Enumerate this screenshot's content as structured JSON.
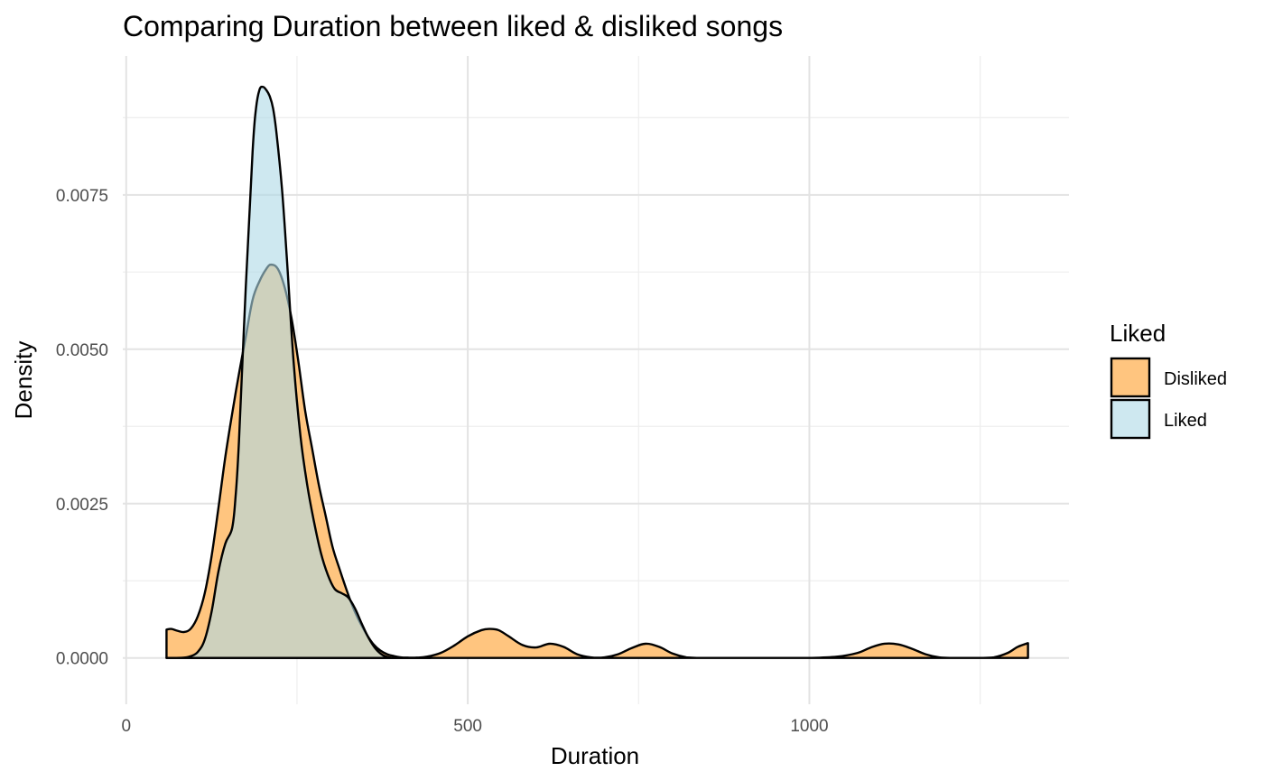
{
  "chart_data": {
    "type": "area",
    "title": "Comparing Duration between liked & disliked songs",
    "xlabel": "Duration",
    "ylabel": "Density",
    "xlim": [
      -5,
      1380
    ],
    "ylim": [
      -0.00075,
      0.00975
    ],
    "x_ticks": [
      0,
      500,
      1000
    ],
    "x_tick_labels": [
      "0",
      "500",
      "1000"
    ],
    "x_minor_ticks": [
      250,
      750,
      1250
    ],
    "y_ticks": [
      0,
      0.0025,
      0.005,
      0.0075
    ],
    "y_tick_labels": [
      "0.0000",
      "0.0025",
      "0.0050",
      "0.0075"
    ],
    "y_minor_ticks": [
      0.00125,
      0.00375,
      0.00625,
      0.00875
    ],
    "grid": true,
    "legend": {
      "title": "Liked",
      "position": "right",
      "entries": [
        "Disliked",
        "Liked"
      ]
    },
    "series": [
      {
        "name": "Disliked",
        "color": "#FFC57F",
        "opacity": 1.0,
        "x": [
          59,
          66,
          75,
          85,
          95,
          105,
          115,
          125,
          135,
          145,
          155,
          165,
          175,
          185,
          195,
          205,
          212,
          222,
          232,
          242,
          252,
          262,
          272,
          282,
          292,
          302,
          312,
          322,
          332,
          342,
          352,
          362,
          372,
          382,
          392,
          402,
          412,
          425,
          440,
          460,
          480,
          500,
          520,
          532,
          545,
          560,
          580,
          600,
          620,
          640,
          660,
          680,
          700,
          720,
          740,
          760,
          780,
          800,
          820,
          840,
          880,
          920,
          960,
          1000,
          1040,
          1070,
          1090,
          1110,
          1130,
          1150,
          1170,
          1190,
          1210,
          1230,
          1250,
          1270,
          1290,
          1305,
          1320
        ],
        "y": [
          0.00046,
          0.00047,
          0.00044,
          0.00042,
          0.00048,
          0.00068,
          0.00105,
          0.00165,
          0.00243,
          0.00325,
          0.00395,
          0.0046,
          0.0052,
          0.0058,
          0.0061,
          0.0063,
          0.00637,
          0.0063,
          0.006,
          0.0055,
          0.0048,
          0.004,
          0.0034,
          0.0028,
          0.0023,
          0.0018,
          0.00145,
          0.00112,
          0.00082,
          0.00058,
          0.00038,
          0.00022,
          0.00012,
          6e-05,
          3e-05,
          1e-05,
          5e-06,
          5e-06,
          2e-05,
          8e-05,
          0.0002,
          0.00035,
          0.00045,
          0.00047,
          0.00045,
          0.00035,
          0.00021,
          0.00017,
          0.00023,
          0.00018,
          6e-05,
          1e-05,
          1e-05,
          6e-05,
          0.00016,
          0.00023,
          0.00018,
          7e-05,
          1e-05,
          0.0,
          0.0,
          0.0,
          0.0,
          0.0,
          2e-05,
          8e-05,
          0.00017,
          0.00023,
          0.00022,
          0.00015,
          6e-05,
          1e-05,
          0.0,
          0.0,
          0.0,
          1e-05,
          8e-05,
          0.00018,
          0.00024
        ]
      },
      {
        "name": "Liked",
        "color": "#ADD8E6",
        "opacity": 0.6,
        "x": [
          59,
          70,
          85,
          95,
          105,
          115,
          125,
          135,
          145,
          155,
          160,
          165,
          175,
          185,
          190,
          195,
          200,
          205,
          210,
          215,
          220,
          228,
          235,
          245,
          255,
          265,
          275,
          285,
          295,
          305,
          315,
          325,
          335,
          345,
          355,
          365,
          375,
          385,
          395,
          405,
          415,
          425,
          435,
          445
        ],
        "y": [
          0.0,
          0.0,
          5e-06,
          3e-05,
          0.0001,
          0.0003,
          0.00075,
          0.0014,
          0.00185,
          0.0021,
          0.0026,
          0.0035,
          0.006,
          0.0082,
          0.0089,
          0.0092,
          0.00925,
          0.0092,
          0.0091,
          0.0089,
          0.0085,
          0.0076,
          0.0065,
          0.0048,
          0.0036,
          0.0028,
          0.0022,
          0.0017,
          0.00135,
          0.00112,
          0.00105,
          0.00098,
          0.0008,
          0.00055,
          0.00032,
          0.00015,
          5e-05,
          1e-05,
          0.0,
          0.0,
          0.0,
          0.0,
          0.0,
          0.0
        ]
      }
    ]
  }
}
